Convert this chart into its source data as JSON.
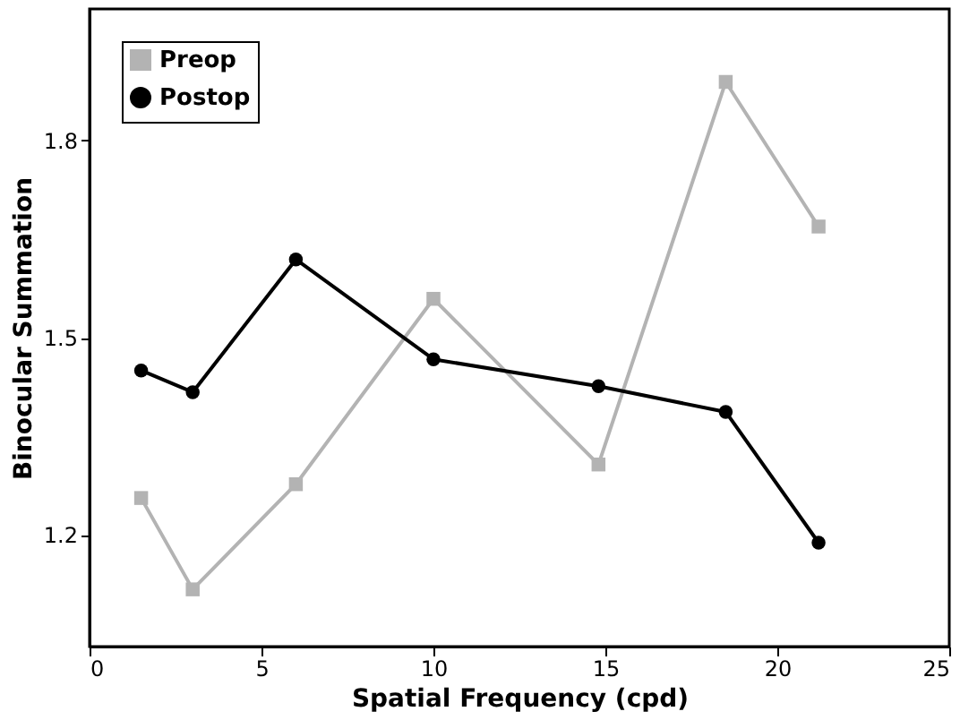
{
  "chart_data": {
    "type": "line",
    "xlabel": "Spatial Frequency (cpd)",
    "ylabel": "Binocular Summation",
    "x": [
      1.5,
      3,
      6,
      10,
      14.8,
      18.5,
      21.2
    ],
    "series": [
      {
        "name": "Preop",
        "color": "#b3b3b3",
        "marker": "square",
        "values": [
          1.256,
          1.117,
          1.277,
          1.559,
          1.307,
          1.889,
          1.669
        ]
      },
      {
        "name": "Postop",
        "color": "#000000",
        "marker": "circle",
        "values": [
          1.45,
          1.417,
          1.619,
          1.467,
          1.426,
          1.387,
          1.188
        ]
      }
    ],
    "xlim": [
      0,
      25
    ],
    "xticks": [
      0,
      5,
      10,
      15,
      20,
      25
    ],
    "ylim": [
      1.03,
      2.0
    ],
    "yticks": [
      1.2,
      1.5,
      1.8
    ],
    "grid": false,
    "legend": "top left",
    "line_style": "solid"
  }
}
